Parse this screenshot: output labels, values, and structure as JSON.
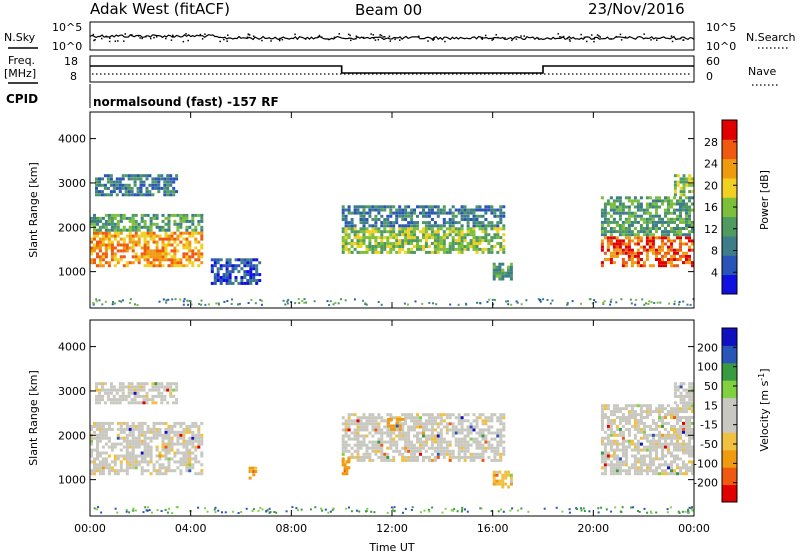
{
  "header": {
    "station": "Adak West (fitACF)",
    "beam": "Beam 00",
    "date": "23/Nov/2016"
  },
  "panels": {
    "nsky_label": "N.Sky",
    "nsearch_label": "N.Search",
    "freq_label_1": "Freq.",
    "freq_label_2": "[MHz]",
    "nave_label": "Nave",
    "cpid_label": "CPID",
    "cpid_text": "normalsound (fast) -157 RF",
    "nsky_ticks": [
      "10^5",
      "10^0"
    ],
    "nsearch_ticks": [
      "10^5",
      "10^0"
    ],
    "freq_ticks": [
      "18",
      "8"
    ],
    "nave_ticks": [
      "60",
      "0"
    ],
    "freq_steps": [
      {
        "t": 0,
        "v": 1
      },
      {
        "t": 10,
        "v": 0
      },
      {
        "t": 18,
        "v": 1
      },
      {
        "t": 24,
        "v": 1
      }
    ]
  },
  "colors": {
    "power": [
      "#1010e0",
      "#2a55b8",
      "#3d7d8a",
      "#4f9a60",
      "#7bbf3a",
      "#f0d020",
      "#f09a10",
      "#f05a10",
      "#e00000"
    ],
    "velocity": [
      "#e00000",
      "#f05a10",
      "#f09a10",
      "#f0c040",
      "#c8c8c0",
      "#c8c8c0",
      "#80d040",
      "#3a9a40",
      "#2a55b8",
      "#1010c0"
    ]
  },
  "chart_data": [
    {
      "type": "heatmap",
      "name": "power",
      "ylabel": "Slant Range [km]",
      "xlabel": "",
      "colorbar_label": "Power [dB]",
      "colorbar_ticks": [
        "28",
        "24",
        "20",
        "16",
        "12",
        "8",
        "4"
      ],
      "xlim": [
        0,
        24
      ],
      "ylim": [
        180,
        4600
      ],
      "yticks": [
        "4000",
        "3000",
        "2000",
        "1000"
      ],
      "yticks_values": [
        4000,
        3000,
        2000,
        1000
      ],
      "regions": [
        {
          "t0": 0.0,
          "t1": 4.5,
          "r0": 1100,
          "r1": 1900,
          "level": 6
        },
        {
          "t0": 0.0,
          "t1": 4.5,
          "r0": 1900,
          "r1": 2300,
          "level": 3
        },
        {
          "t0": 0.2,
          "t1": 3.5,
          "r0": 2700,
          "r1": 3200,
          "level": 2
        },
        {
          "t0": 4.8,
          "t1": 6.8,
          "r0": 700,
          "r1": 1300,
          "level": 1
        },
        {
          "t0": 10.0,
          "t1": 16.5,
          "r0": 1400,
          "r1": 2000,
          "level": 4
        },
        {
          "t0": 10.0,
          "t1": 16.5,
          "r0": 2000,
          "r1": 2500,
          "level": 2
        },
        {
          "t0": 16.0,
          "t1": 16.8,
          "r0": 800,
          "r1": 1200,
          "level": 3
        },
        {
          "t0": 20.3,
          "t1": 24.0,
          "r0": 1100,
          "r1": 1800,
          "level": 7
        },
        {
          "t0": 20.3,
          "t1": 24.0,
          "r0": 1800,
          "r1": 2700,
          "level": 3
        },
        {
          "t0": 23.2,
          "t1": 24.0,
          "r0": 2700,
          "r1": 3200,
          "level": 4
        }
      ]
    },
    {
      "type": "heatmap",
      "name": "velocity",
      "ylabel": "Slant Range [km]",
      "xlabel": "Time UT",
      "colorbar_label_1": "Velocity",
      "colorbar_label_2": "[m s",
      "colorbar_label_3": "-1",
      "colorbar_label_4": "]",
      "colorbar_ticks": [
        "200",
        "100",
        "50",
        "15",
        "-15",
        "-50",
        "-100",
        "-200"
      ],
      "xlim": [
        0,
        24
      ],
      "ylim": [
        180,
        4600
      ],
      "xticks": [
        "00:00",
        "04:00",
        "08:00",
        "12:00",
        "16:00",
        "20:00",
        "00:00"
      ],
      "xticks_values": [
        0,
        4,
        8,
        12,
        16,
        20,
        24
      ],
      "yticks": [
        "4000",
        "3000",
        "2000",
        "1000"
      ],
      "yticks_values": [
        4000,
        3000,
        2000,
        1000
      ],
      "regions": [
        {
          "t0": 0.0,
          "t1": 4.5,
          "r0": 1100,
          "r1": 2300,
          "level": 4
        },
        {
          "t0": 0.2,
          "t1": 3.5,
          "r0": 2700,
          "r1": 3200,
          "level": 4
        },
        {
          "t0": 6.3,
          "t1": 6.6,
          "r0": 1000,
          "r1": 1300,
          "level": 2
        },
        {
          "t0": 10.0,
          "t1": 16.5,
          "r0": 1400,
          "r1": 2500,
          "level": 4
        },
        {
          "t0": 10.0,
          "t1": 10.3,
          "r0": 1100,
          "r1": 1500,
          "level": 2
        },
        {
          "t0": 11.8,
          "t1": 12.5,
          "r0": 2100,
          "r1": 2400,
          "level": 2
        },
        {
          "t0": 16.0,
          "t1": 16.8,
          "r0": 800,
          "r1": 1200,
          "level": 3
        },
        {
          "t0": 20.3,
          "t1": 24.0,
          "r0": 1100,
          "r1": 2700,
          "level": 4
        },
        {
          "t0": 23.2,
          "t1": 24.0,
          "r0": 2700,
          "r1": 3200,
          "level": 5
        }
      ]
    }
  ]
}
